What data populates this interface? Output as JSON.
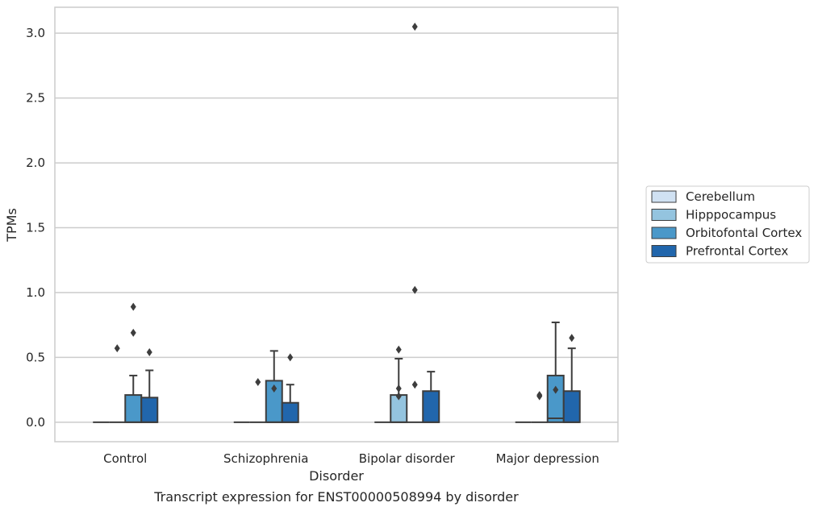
{
  "chart_data": {
    "type": "boxplot",
    "caption": "Transcript expression for ENST00000508994 by disorder",
    "xlabel": "Disorder",
    "ylabel": "TPMs",
    "ylim": [
      -0.15,
      3.2
    ],
    "yticks": [
      0.0,
      0.5,
      1.0,
      1.5,
      2.0,
      2.5,
      3.0
    ],
    "ytick_labels": [
      "0.0",
      "0.5",
      "1.0",
      "1.5",
      "2.0",
      "2.5",
      "3.0"
    ],
    "grid": "horizontal",
    "legend_position": "right",
    "categories": [
      "Control",
      "Schizophrenia",
      "Bipolar disorder",
      "Major depression"
    ],
    "series": [
      {
        "name": "Cerebellum",
        "color": "#d0e1f2",
        "boxes": [
          {
            "q1": 0,
            "median": 0,
            "q3": 0,
            "whislo": 0,
            "whishi": 0,
            "fliers": []
          },
          {
            "q1": 0,
            "median": 0,
            "q3": 0,
            "whislo": 0,
            "whishi": 0,
            "fliers": []
          },
          {
            "q1": 0,
            "median": 0,
            "q3": 0,
            "whislo": 0,
            "whishi": 0,
            "fliers": []
          },
          {
            "q1": 0,
            "median": 0,
            "q3": 0,
            "whislo": 0,
            "whishi": 0,
            "fliers": []
          }
        ]
      },
      {
        "name": "Hipppocampus",
        "color": "#94c4df",
        "boxes": [
          {
            "q1": 0,
            "median": 0,
            "q3": 0,
            "whislo": 0,
            "whishi": 0,
            "fliers": [
              0.57
            ]
          },
          {
            "q1": 0,
            "median": 0,
            "q3": 0,
            "whislo": 0,
            "whishi": 0,
            "fliers": [
              0.31
            ]
          },
          {
            "q1": 0,
            "median": 0,
            "q3": 0.21,
            "whislo": 0,
            "whishi": 0.49,
            "fliers": [
              0.2,
              0.26,
              0.56
            ]
          },
          {
            "q1": 0,
            "median": 0,
            "q3": 0,
            "whislo": 0,
            "whishi": 0,
            "fliers": [
              0.2,
              0.21
            ]
          }
        ]
      },
      {
        "name": "Orbitofontal Cortex",
        "color": "#4a98c9",
        "boxes": [
          {
            "q1": 0,
            "median": 0,
            "q3": 0.21,
            "whislo": 0,
            "whishi": 0.36,
            "fliers": [
              0.69,
              0.89
            ]
          },
          {
            "q1": 0,
            "median": 0,
            "q3": 0.32,
            "whislo": 0,
            "whishi": 0.55,
            "fliers": [
              0.26
            ]
          },
          {
            "q1": 0,
            "median": 0,
            "q3": 0,
            "whislo": 0,
            "whishi": 0,
            "fliers": [
              0.29,
              1.02,
              3.05
            ]
          },
          {
            "q1": 0,
            "median": 0.03,
            "q3": 0.36,
            "whislo": 0,
            "whishi": 0.77,
            "fliers": [
              0.25
            ]
          }
        ]
      },
      {
        "name": "Prefrontal Cortex",
        "color": "#2166ac",
        "boxes": [
          {
            "q1": 0,
            "median": 0,
            "q3": 0.19,
            "whislo": 0,
            "whishi": 0.4,
            "fliers": [
              0.54
            ]
          },
          {
            "q1": 0,
            "median": 0,
            "q3": 0.15,
            "whislo": 0,
            "whishi": 0.29,
            "fliers": [
              0.5
            ]
          },
          {
            "q1": 0,
            "median": 0,
            "q3": 0.24,
            "whislo": 0,
            "whishi": 0.39,
            "fliers": []
          },
          {
            "q1": 0,
            "median": 0,
            "q3": 0.24,
            "whislo": 0,
            "whishi": 0.57,
            "fliers": [
              0.65
            ]
          }
        ]
      }
    ]
  }
}
